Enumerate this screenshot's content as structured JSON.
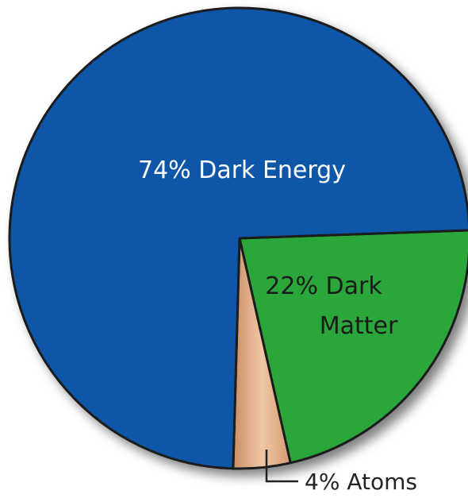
{
  "chart_data": {
    "type": "pie",
    "slices": [
      {
        "label": "Dark Energy",
        "value": 74,
        "display": [
          "74% Dark Energy"
        ],
        "color": "#0a56a8",
        "text_color": "#ffffff"
      },
      {
        "label": "Dark Matter",
        "value": 22,
        "display": [
          "22% Dark",
          "Matter"
        ],
        "color": "#2aa63a",
        "text_color": "#1a1a1a"
      },
      {
        "label": "Atoms",
        "value": 4,
        "display": [
          "4% Atoms"
        ],
        "color": "#e7b48f",
        "text_color": "#222222"
      }
    ]
  }
}
